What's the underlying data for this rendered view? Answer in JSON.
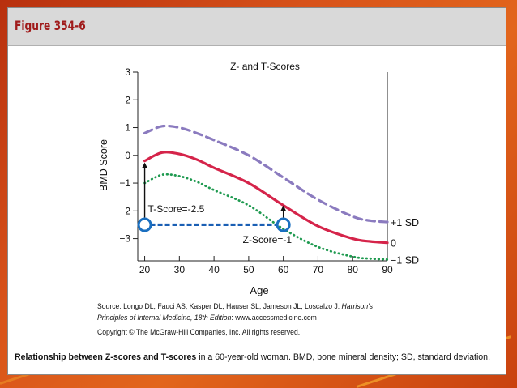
{
  "header": {
    "figure_label": "Figure 354-6"
  },
  "chart_data": {
    "type": "line",
    "title": "Z- and T-Scores",
    "xlabel": "Age",
    "ylabel": "BMD Score",
    "xlim": [
      18,
      90
    ],
    "ylim": [
      -3.8,
      3
    ],
    "xticks": [
      20,
      30,
      40,
      50,
      60,
      70,
      80,
      90
    ],
    "yticks": [
      -3,
      -2,
      -1,
      0,
      1,
      2,
      3
    ],
    "ytick_labels": [
      "−3",
      "−2",
      "−1",
      "0",
      "1",
      "2",
      "3"
    ],
    "series": [
      {
        "name": "+1 SD",
        "color": "#8b7bbf",
        "style": "dashed",
        "x": [
          20,
          25,
          30,
          35,
          40,
          50,
          60,
          70,
          80,
          85,
          90
        ],
        "y": [
          0.8,
          1.05,
          1.0,
          0.8,
          0.55,
          0.0,
          -0.8,
          -1.6,
          -2.2,
          -2.35,
          -2.4
        ]
      },
      {
        "name": "0",
        "color": "#d5244a",
        "style": "solid",
        "x": [
          20,
          25,
          30,
          35,
          40,
          50,
          60,
          70,
          80,
          85,
          90
        ],
        "y": [
          -0.2,
          0.1,
          0.05,
          -0.15,
          -0.45,
          -1.0,
          -1.8,
          -2.55,
          -3.0,
          -3.1,
          -3.15
        ]
      },
      {
        "name": "−1 SD",
        "color": "#1f9a50",
        "style": "dotted",
        "x": [
          20,
          25,
          30,
          35,
          40,
          50,
          60,
          70,
          80,
          85,
          90
        ],
        "y": [
          -1.0,
          -0.7,
          -0.75,
          -0.95,
          -1.25,
          -1.8,
          -2.65,
          -3.3,
          -3.65,
          -3.72,
          -3.75
        ]
      }
    ],
    "annotations": {
      "t_score_label": "T-Score=-2.5",
      "z_score_label": "Z-Score=-1",
      "t_score_value": -2.5,
      "z_score_value": -1,
      "t_point": {
        "x": 20,
        "y": -2.5
      },
      "z_point": {
        "x": 60,
        "y": -2.5
      }
    }
  },
  "source": {
    "line1": "Source: Longo DL, Fauci AS, Kasper DL, Hauser SL, Jameson JL, Loscalzo J: ",
    "book_title_a": "Harrison's",
    "book_title_b": "Principles of Internal Medicine, 18th Edition",
    "line2_rest": ": www.accessmedicine.com",
    "copyright": "Copyright © The McGraw-Hill Companies, Inc. All rights reserved."
  },
  "caption": {
    "bold": "Relationship between Z-scores and T-scores",
    "rest": " in a 60-year-old woman. BMD, bone mineral density; SD, standard deviation."
  }
}
